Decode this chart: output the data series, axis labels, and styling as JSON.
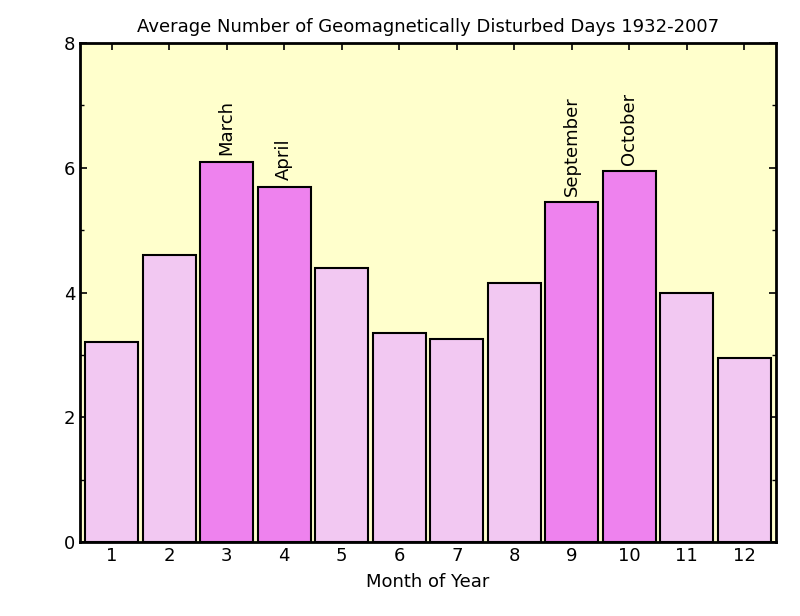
{
  "title": "Average Number of Geomagnetically Disturbed Days 1932-2007",
  "xlabel": "Month of Year",
  "months": [
    1,
    2,
    3,
    4,
    5,
    6,
    7,
    8,
    9,
    10,
    11,
    12
  ],
  "values": [
    3.2,
    4.6,
    6.1,
    5.7,
    4.4,
    3.35,
    3.25,
    4.15,
    5.45,
    5.95,
    4.0,
    2.95
  ],
  "highlighted_months": [
    3,
    4,
    9,
    10
  ],
  "highlight_color": "#EE82EE",
  "normal_color": "#F2C8F2",
  "bar_edge_color": "#000000",
  "background_color": "#FFFFCC",
  "fig_background": "#FFFFFF",
  "annotations": [
    {
      "month": 3,
      "label": "March"
    },
    {
      "month": 4,
      "label": "April"
    },
    {
      "month": 9,
      "label": "September"
    },
    {
      "month": 10,
      "label": "October"
    }
  ],
  "ylim": [
    0,
    8
  ],
  "yticks": [
    0,
    2,
    4,
    6,
    8
  ],
  "bar_width": 0.92,
  "title_fontsize": 13,
  "label_fontsize": 13,
  "tick_fontsize": 13,
  "annotation_fontsize": 13
}
